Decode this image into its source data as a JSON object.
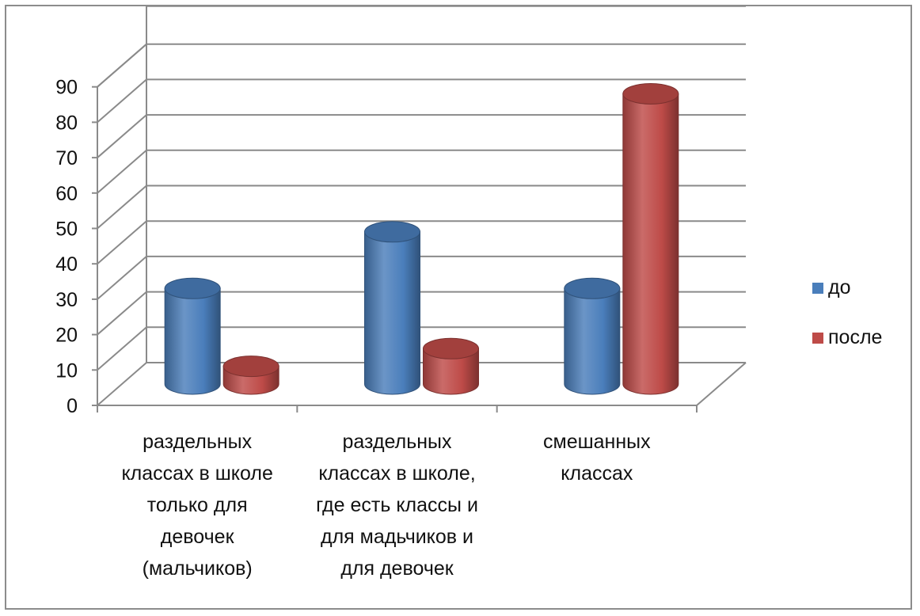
{
  "chart_data": {
    "type": "bar",
    "variant": "3d-cylinder",
    "categories": [
      "раздельных классах в школе только для девочек (мальчиков)",
      "раздельных классах в школе, где есть классы и для мадьчиков и для девочек",
      "смешанных классах"
    ],
    "category_lines": [
      [
        "раздельных",
        "классах в школе",
        "только для",
        "девочек",
        "(мальчиков)"
      ],
      [
        "раздельных",
        "классах в школе,",
        "где есть классы и",
        "для мадьчиков и",
        "для девочек"
      ],
      [
        "смешанных",
        "классах"
      ]
    ],
    "series": [
      {
        "name": "до",
        "color": "#4a7ebb",
        "values": [
          27,
          43,
          27
        ]
      },
      {
        "name": "после",
        "color": "#be4b48",
        "values": [
          5,
          10,
          82
        ]
      }
    ],
    "ylim": [
      0,
      90
    ],
    "yticks": [
      0,
      10,
      20,
      30,
      40,
      50,
      60,
      70,
      80,
      90
    ],
    "title": "",
    "xlabel": "",
    "ylabel": "",
    "grid": true,
    "legend_position": "right"
  }
}
